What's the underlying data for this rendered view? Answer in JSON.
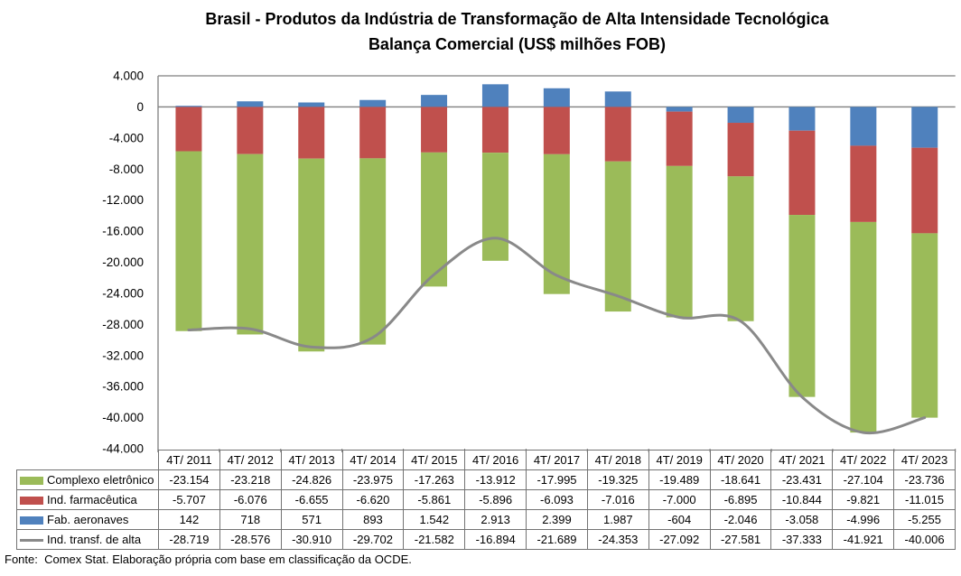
{
  "title": {
    "line1": "Brasil - Produtos da Indústria de Transformação de Alta Intensidade Tecnológica",
    "line2": "Balança Comercial (US$ milhões FOB)"
  },
  "source_note": "Fonte:  Comex Stat. Elaboração própria com base em classificação da OCDE.",
  "chart_data": {
    "type": "bar",
    "subtype": "stacked-columns-with-smoothed-line-overlay",
    "title": "Brasil - Produtos da Indústria de Transformação de Alta Intensidade Tecnológica — Balança Comercial (US$ milhões FOB)",
    "categories": [
      "4T/ 2011",
      "4T/ 2012",
      "4T/ 2013",
      "4T/ 2014",
      "4T/ 2015",
      "4T/ 2016",
      "4T/ 2017",
      "4T/ 2018",
      "4T/ 2019",
      "4T/ 2020",
      "4T/ 2021",
      "4T/ 2022",
      "4T/ 2023"
    ],
    "series": [
      {
        "name": "Complexo eletrônico",
        "type": "bar",
        "color": "#9BBB59",
        "values": [
          -23154,
          -23218,
          -24826,
          -23975,
          -17263,
          -13912,
          -17995,
          -19325,
          -19489,
          -18641,
          -23431,
          -27104,
          -23736
        ]
      },
      {
        "name": "Ind. farmacêutica",
        "type": "bar",
        "color": "#C0504D",
        "values": [
          -5707,
          -6076,
          -6655,
          -6620,
          -5861,
          -5896,
          -6093,
          -7016,
          -7000,
          -6895,
          -10844,
          -9821,
          -11015
        ]
      },
      {
        "name": "Fab. aeronaves",
        "type": "bar",
        "color": "#4F81BD",
        "values": [
          142,
          718,
          571,
          893,
          1542,
          2913,
          2399,
          1987,
          -604,
          -2046,
          -3058,
          -4996,
          -5255
        ]
      },
      {
        "name": "Ind. transf. de alta",
        "type": "line",
        "color": "#898989",
        "values": [
          -28719,
          -28576,
          -30910,
          -29702,
          -21582,
          -16894,
          -21689,
          -24353,
          -27092,
          -27581,
          -37333,
          -41921,
          -40006
        ]
      }
    ],
    "ylim": [
      -44000,
      4000
    ],
    "ytick_step": 4000,
    "number_format": "thousands-dot-separator",
    "axis_color": "#7F7F7F",
    "gridlines": "top-border-and-zero-line-only",
    "legend_position": "data-table-left-column"
  }
}
